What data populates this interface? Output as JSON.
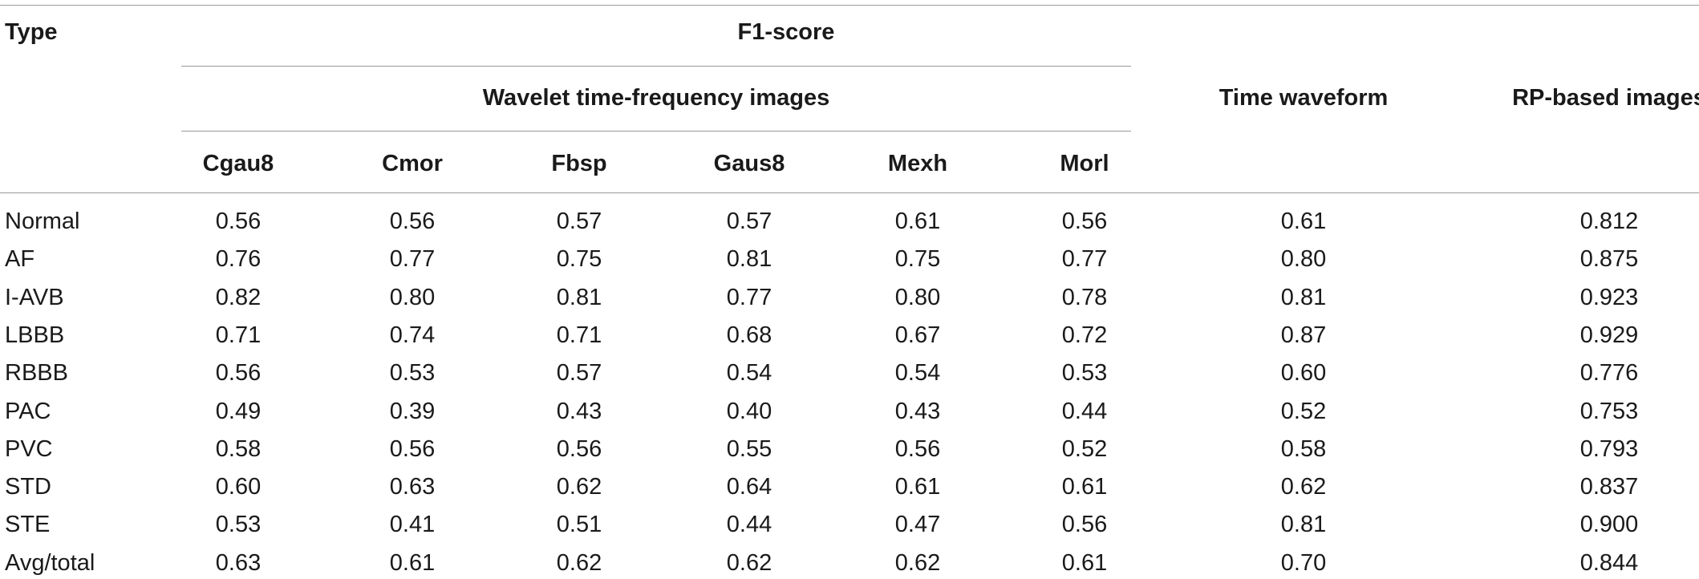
{
  "table": {
    "header": {
      "type": "Type",
      "f1_score": "F1-score",
      "wavelet_group": "Wavelet time-frequency images",
      "time_waveform": "Time waveform",
      "rp_images": "RP-based images",
      "wavelets": [
        "Cgau8",
        "Cmor",
        "Fbsp",
        "Gaus8",
        "Mexh",
        "Morl"
      ]
    },
    "rows": [
      {
        "type": "Normal",
        "values": [
          "0.56",
          "0.56",
          "0.57",
          "0.57",
          "0.61",
          "0.56",
          "0.61",
          "0.812"
        ]
      },
      {
        "type": "AF",
        "values": [
          "0.76",
          "0.77",
          "0.75",
          "0.81",
          "0.75",
          "0.77",
          "0.80",
          "0.875"
        ]
      },
      {
        "type": "I-AVB",
        "values": [
          "0.82",
          "0.80",
          "0.81",
          "0.77",
          "0.80",
          "0.78",
          "0.81",
          "0.923"
        ]
      },
      {
        "type": "LBBB",
        "values": [
          "0.71",
          "0.74",
          "0.71",
          "0.68",
          "0.67",
          "0.72",
          "0.87",
          "0.929"
        ]
      },
      {
        "type": "RBBB",
        "values": [
          "0.56",
          "0.53",
          "0.57",
          "0.54",
          "0.54",
          "0.53",
          "0.60",
          "0.776"
        ]
      },
      {
        "type": "PAC",
        "values": [
          "0.49",
          "0.39",
          "0.43",
          "0.40",
          "0.43",
          "0.44",
          "0.52",
          "0.753"
        ]
      },
      {
        "type": "PVC",
        "values": [
          "0.58",
          "0.56",
          "0.56",
          "0.55",
          "0.56",
          "0.52",
          "0.58",
          "0.793"
        ]
      },
      {
        "type": "STD",
        "values": [
          "0.60",
          "0.63",
          "0.62",
          "0.64",
          "0.61",
          "0.61",
          "0.62",
          "0.837"
        ]
      },
      {
        "type": "STE",
        "values": [
          "0.53",
          "0.41",
          "0.51",
          "0.44",
          "0.47",
          "0.56",
          "0.81",
          "0.900"
        ]
      },
      {
        "type": "Avg/total",
        "values": [
          "0.63",
          "0.61",
          "0.62",
          "0.62",
          "0.62",
          "0.61",
          "0.70",
          "0.844"
        ]
      }
    ]
  }
}
